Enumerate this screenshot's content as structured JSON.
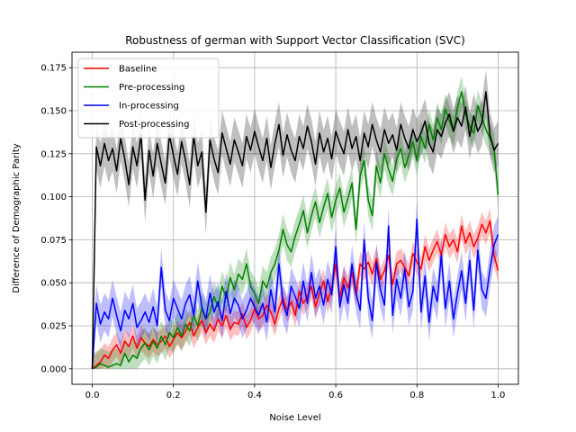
{
  "chart_data": {
    "type": "line",
    "title": "Robustness of german with Support Vector Classification (SVC)",
    "xlabel": "Noise Level",
    "ylabel": "Difference of Demographic Parity",
    "xlim": [
      -0.05,
      1.05
    ],
    "ylim": [
      -0.009,
      0.184
    ],
    "xticks": [
      "0.0",
      "0.2",
      "0.4",
      "0.6",
      "0.8",
      "1.0"
    ],
    "yticks": [
      "0.000",
      "0.025",
      "0.050",
      "0.075",
      "0.100",
      "0.125",
      "0.150",
      "0.175"
    ],
    "grid": true,
    "legend_position": "top-left",
    "x": [
      0.0,
      0.01,
      0.02,
      0.03,
      0.04,
      0.05,
      0.06,
      0.07,
      0.08,
      0.09,
      0.1,
      0.11,
      0.12,
      0.13,
      0.14,
      0.15,
      0.16,
      0.17,
      0.18,
      0.19,
      0.2,
      0.21,
      0.22,
      0.23,
      0.24,
      0.25,
      0.26,
      0.27,
      0.28,
      0.29,
      0.3,
      0.31,
      0.32,
      0.33,
      0.34,
      0.35,
      0.36,
      0.37,
      0.38,
      0.39,
      0.4,
      0.41,
      0.42,
      0.43,
      0.44,
      0.45,
      0.46,
      0.47,
      0.48,
      0.49,
      0.5,
      0.51,
      0.52,
      0.53,
      0.54,
      0.55,
      0.56,
      0.57,
      0.58,
      0.59,
      0.6,
      0.61,
      0.62,
      0.63,
      0.64,
      0.65,
      0.66,
      0.67,
      0.68,
      0.69,
      0.7,
      0.71,
      0.72,
      0.73,
      0.74,
      0.75,
      0.76,
      0.77,
      0.78,
      0.79,
      0.8,
      0.81,
      0.82,
      0.83,
      0.84,
      0.85,
      0.86,
      0.87,
      0.88,
      0.89,
      0.9,
      0.91,
      0.92,
      0.93,
      0.94,
      0.95,
      0.96,
      0.97,
      0.98,
      0.99,
      1.0
    ],
    "series": [
      {
        "name": "Baseline",
        "color": "#ff0000",
        "band": 0.007,
        "values": [
          0.0,
          0.002,
          0.004,
          0.008,
          0.006,
          0.011,
          0.014,
          0.009,
          0.016,
          0.013,
          0.019,
          0.012,
          0.018,
          0.015,
          0.013,
          0.017,
          0.014,
          0.016,
          0.019,
          0.013,
          0.017,
          0.021,
          0.018,
          0.022,
          0.027,
          0.019,
          0.024,
          0.028,
          0.021,
          0.026,
          0.022,
          0.029,
          0.025,
          0.031,
          0.023,
          0.027,
          0.026,
          0.032,
          0.024,
          0.028,
          0.035,
          0.029,
          0.031,
          0.037,
          0.033,
          0.026,
          0.035,
          0.041,
          0.034,
          0.039,
          0.031,
          0.045,
          0.038,
          0.042,
          0.048,
          0.036,
          0.044,
          0.051,
          0.039,
          0.047,
          0.061,
          0.041,
          0.053,
          0.047,
          0.056,
          0.043,
          0.061,
          0.058,
          0.062,
          0.055,
          0.064,
          0.052,
          0.057,
          0.066,
          0.049,
          0.061,
          0.063,
          0.059,
          0.054,
          0.067,
          0.062,
          0.058,
          0.071,
          0.063,
          0.069,
          0.074,
          0.066,
          0.078,
          0.071,
          0.075,
          0.068,
          0.083,
          0.073,
          0.079,
          0.071,
          0.076,
          0.084,
          0.079,
          0.086,
          0.066,
          0.057
        ]
      },
      {
        "name": "Pre-processing",
        "color": "#008000",
        "band": 0.009,
        "values": [
          0.0,
          0.001,
          0.003,
          0.002,
          0.001,
          0.002,
          0.003,
          0.002,
          0.009,
          0.004,
          0.008,
          0.006,
          0.012,
          0.015,
          0.011,
          0.016,
          0.012,
          0.019,
          0.014,
          0.021,
          0.018,
          0.024,
          0.019,
          0.026,
          0.022,
          0.031,
          0.025,
          0.035,
          0.029,
          0.033,
          0.042,
          0.036,
          0.048,
          0.041,
          0.053,
          0.046,
          0.055,
          0.052,
          0.061,
          0.048,
          0.044,
          0.038,
          0.051,
          0.047,
          0.056,
          0.061,
          0.069,
          0.081,
          0.072,
          0.068,
          0.077,
          0.084,
          0.092,
          0.079,
          0.089,
          0.097,
          0.085,
          0.094,
          0.102,
          0.088,
          0.098,
          0.105,
          0.091,
          0.099,
          0.108,
          0.081,
          0.112,
          0.121,
          0.098,
          0.089,
          0.118,
          0.108,
          0.125,
          0.116,
          0.109,
          0.122,
          0.128,
          0.117,
          0.124,
          0.132,
          0.121,
          0.135,
          0.128,
          0.142,
          0.133,
          0.146,
          0.139,
          0.151,
          0.144,
          0.138,
          0.152,
          0.161,
          0.148,
          0.141,
          0.137,
          0.153,
          0.146,
          0.139,
          0.134,
          0.128,
          0.101
        ]
      },
      {
        "name": "In-processing",
        "color": "#0000ff",
        "band": 0.011,
        "values": [
          0.0,
          0.038,
          0.026,
          0.033,
          0.029,
          0.041,
          0.031,
          0.022,
          0.034,
          0.029,
          0.038,
          0.024,
          0.028,
          0.033,
          0.027,
          0.036,
          0.025,
          0.059,
          0.034,
          0.028,
          0.041,
          0.035,
          0.029,
          0.038,
          0.043,
          0.031,
          0.051,
          0.036,
          0.029,
          0.044,
          0.033,
          0.039,
          0.028,
          0.045,
          0.032,
          0.041,
          0.037,
          0.029,
          0.034,
          0.041,
          0.036,
          0.031,
          0.038,
          0.027,
          0.046,
          0.033,
          0.061,
          0.038,
          0.031,
          0.048,
          0.042,
          0.035,
          0.051,
          0.038,
          0.056,
          0.041,
          0.048,
          0.037,
          0.052,
          0.043,
          0.071,
          0.036,
          0.049,
          0.038,
          0.061,
          0.044,
          0.034,
          0.075,
          0.041,
          0.028,
          0.062,
          0.046,
          0.037,
          0.083,
          0.031,
          0.052,
          0.041,
          0.058,
          0.036,
          0.045,
          0.087,
          0.033,
          0.054,
          0.027,
          0.048,
          0.039,
          0.066,
          0.035,
          0.051,
          0.029,
          0.044,
          0.057,
          0.038,
          0.063,
          0.034,
          0.069,
          0.046,
          0.041,
          0.058,
          0.072,
          0.078
        ]
      },
      {
        "name": "Post-processing",
        "color": "#000000",
        "band": 0.013,
        "values": [
          0.0,
          0.129,
          0.118,
          0.131,
          0.121,
          0.128,
          0.115,
          0.134,
          0.122,
          0.107,
          0.129,
          0.118,
          0.136,
          0.098,
          0.127,
          0.112,
          0.131,
          0.119,
          0.108,
          0.136,
          0.124,
          0.113,
          0.132,
          0.121,
          0.107,
          0.135,
          0.118,
          0.126,
          0.091,
          0.133,
          0.122,
          0.114,
          0.137,
          0.128,
          0.119,
          0.133,
          0.126,
          0.118,
          0.135,
          0.127,
          0.138,
          0.129,
          0.121,
          0.134,
          0.117,
          0.131,
          0.142,
          0.124,
          0.136,
          0.127,
          0.121,
          0.135,
          0.128,
          0.141,
          0.132,
          0.119,
          0.137,
          0.126,
          0.134,
          0.122,
          0.138,
          0.131,
          0.125,
          0.139,
          0.128,
          0.135,
          0.121,
          0.137,
          0.129,
          0.142,
          0.133,
          0.126,
          0.139,
          0.131,
          0.136,
          0.127,
          0.142,
          0.134,
          0.128,
          0.139,
          0.132,
          0.137,
          0.144,
          0.131,
          0.126,
          0.139,
          0.135,
          0.143,
          0.148,
          0.138,
          0.146,
          0.141,
          0.152,
          0.135,
          0.147,
          0.138,
          0.143,
          0.161,
          0.136,
          0.127,
          0.131
        ]
      }
    ]
  }
}
